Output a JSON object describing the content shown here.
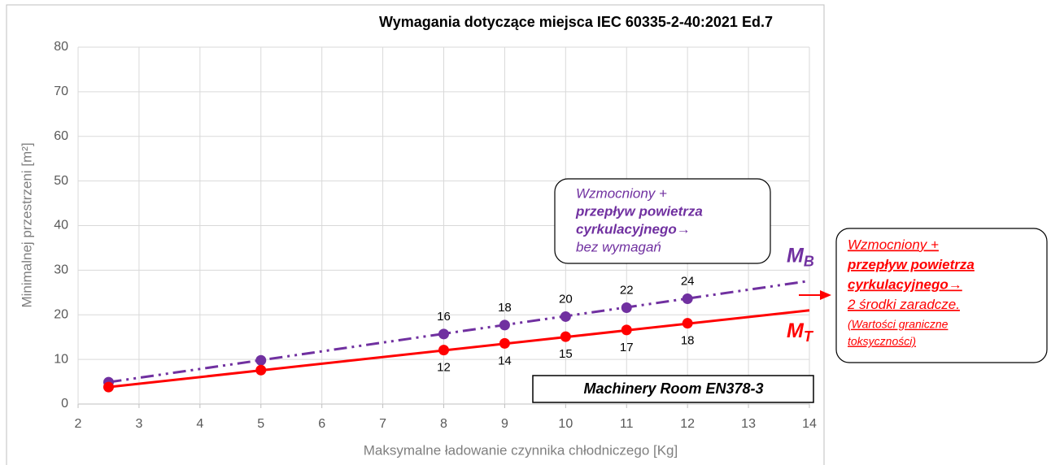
{
  "chart_data": {
    "type": "line",
    "title": "Wymagania dotyczące miejsca IEC 60335-2-40:2021 Ed.7",
    "xlabel": "Maksymalne ładowanie czynnika chłodniczego [Kg]",
    "ylabel": "Minimalnej przestrzeni [m²]",
    "xlim": [
      2,
      14
    ],
    "xticks": [
      2,
      3,
      4,
      5,
      6,
      7,
      8,
      9,
      10,
      11,
      12,
      13,
      14
    ],
    "ylim": [
      0,
      80
    ],
    "yticks": [
      0,
      10,
      20,
      30,
      40,
      50,
      60,
      70,
      80
    ],
    "grid": true,
    "series": [
      {
        "label": {
          "text": "M",
          "sub": "B"
        },
        "color": "#7030a0",
        "dash": "dashdotdot",
        "label_side": "above",
        "x": [
          2.5,
          5,
          8,
          9,
          10,
          11,
          12
        ],
        "values": [
          4.9,
          9.8,
          15.7,
          17.7,
          19.6,
          21.6,
          23.6
        ],
        "value_labels": [
          null,
          null,
          "16",
          "18",
          "20",
          "22",
          "24"
        ],
        "trend": {
          "x": [
            2.5,
            14
          ],
          "values": [
            4.9,
            27.6
          ]
        }
      },
      {
        "label": {
          "text": "M",
          "sub": "T"
        },
        "color": "#ff0000",
        "dash": "solid",
        "label_side": "below",
        "x": [
          2.5,
          5,
          8,
          9,
          10,
          11,
          12
        ],
        "values": [
          3.8,
          7.6,
          12.1,
          13.6,
          15.1,
          16.6,
          18.1
        ],
        "value_labels": [
          null,
          null,
          "12",
          "14",
          "15",
          "17",
          "18"
        ],
        "trend": {
          "x": [
            2.5,
            14
          ],
          "values": [
            3.8,
            21
          ]
        }
      }
    ],
    "annotations": [
      {
        "color": "#7030a0",
        "lines": [
          {
            "text": "Wzmocniony +",
            "bold": false
          },
          {
            "text": "przepływ powietrza",
            "bold": true
          },
          {
            "text": "cyrkulacyjnego→",
            "bold": true
          },
          {
            "text": "bez wymagań",
            "bold": false
          }
        ]
      },
      {
        "color": "#ff0000",
        "lines": [
          {
            "text": "Wzmocniony +",
            "bold": false
          },
          {
            "text": "przepływ powietrza",
            "bold": true
          },
          {
            "text": "cyrkulacyjnego→",
            "bold": true
          },
          {
            "text": "2 środki zaradcze.",
            "bold": false
          },
          {
            "text": "(Wartości graniczne",
            "bold": false,
            "small": true
          },
          {
            "text": "toksyczności)",
            "bold": false,
            "small": true
          }
        ]
      }
    ],
    "note": "Machinery Room EN378-3"
  }
}
